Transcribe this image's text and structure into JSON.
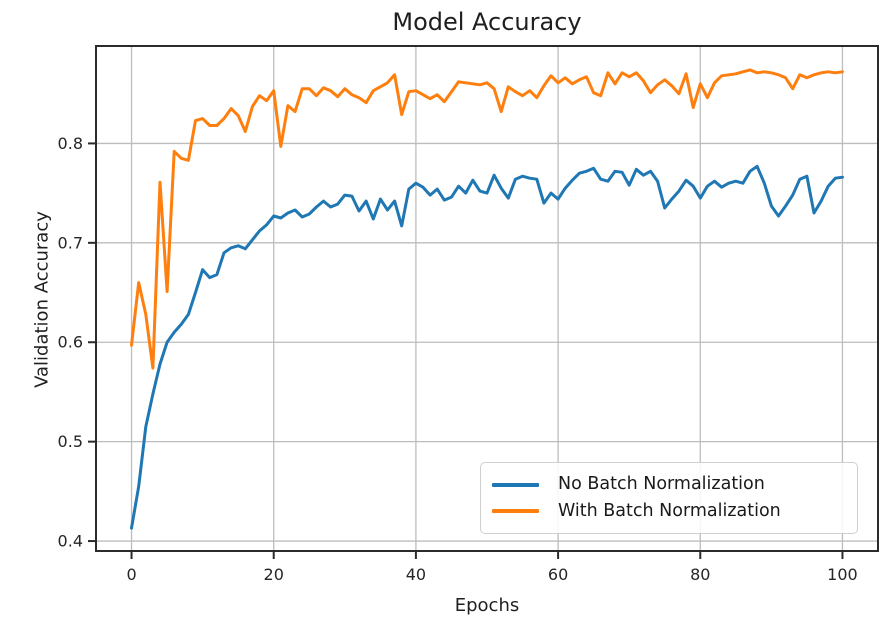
{
  "chart_data": {
    "type": "line",
    "title": "Model Accuracy",
    "xlabel": "Epochs",
    "ylabel": "Validation Accuracy",
    "xlim": [
      -5,
      105
    ],
    "ylim": [
      0.39,
      0.898
    ],
    "xticks": [
      0,
      20,
      40,
      60,
      80,
      100
    ],
    "yticks": [
      0.4,
      0.5,
      0.6,
      0.7,
      0.8
    ],
    "grid": true,
    "legend_position": "lower right",
    "x": [
      0,
      1,
      2,
      3,
      4,
      5,
      6,
      7,
      8,
      9,
      10,
      11,
      12,
      13,
      14,
      15,
      16,
      17,
      18,
      19,
      20,
      21,
      22,
      23,
      24,
      25,
      26,
      27,
      28,
      29,
      30,
      31,
      32,
      33,
      34,
      35,
      36,
      37,
      38,
      39,
      40,
      41,
      42,
      43,
      44,
      45,
      46,
      47,
      48,
      49,
      50,
      51,
      52,
      53,
      54,
      55,
      56,
      57,
      58,
      59,
      60,
      61,
      62,
      63,
      64,
      65,
      66,
      67,
      68,
      69,
      70,
      71,
      72,
      73,
      74,
      75,
      76,
      77,
      78,
      79,
      80,
      81,
      82,
      83,
      84,
      85,
      86,
      87,
      88,
      89,
      90,
      91,
      92,
      93,
      94,
      95,
      96,
      97,
      98,
      99,
      100
    ],
    "series": [
      {
        "name": "No Batch Normalization",
        "color": "#1f77b4",
        "values": [
          0.413,
          0.455,
          0.515,
          0.548,
          0.578,
          0.6,
          0.61,
          0.618,
          0.628,
          0.65,
          0.673,
          0.665,
          0.668,
          0.69,
          0.695,
          0.697,
          0.694,
          0.703,
          0.712,
          0.718,
          0.727,
          0.725,
          0.73,
          0.733,
          0.726,
          0.729,
          0.736,
          0.742,
          0.736,
          0.739,
          0.748,
          0.747,
          0.732,
          0.742,
          0.724,
          0.744,
          0.733,
          0.742,
          0.717,
          0.754,
          0.76,
          0.756,
          0.748,
          0.754,
          0.743,
          0.746,
          0.757,
          0.75,
          0.763,
          0.752,
          0.75,
          0.768,
          0.755,
          0.745,
          0.764,
          0.767,
          0.765,
          0.764,
          0.74,
          0.75,
          0.744,
          0.755,
          0.763,
          0.77,
          0.772,
          0.775,
          0.764,
          0.762,
          0.772,
          0.771,
          0.758,
          0.774,
          0.768,
          0.772,
          0.762,
          0.735,
          0.744,
          0.752,
          0.763,
          0.757,
          0.745,
          0.757,
          0.762,
          0.756,
          0.76,
          0.762,
          0.76,
          0.772,
          0.777,
          0.76,
          0.737,
          0.727,
          0.737,
          0.748,
          0.764,
          0.767,
          0.73,
          0.742,
          0.757,
          0.765,
          0.766
        ]
      },
      {
        "name": "With Batch Normalization",
        "color": "#ff7f0e",
        "values": [
          0.597,
          0.66,
          0.628,
          0.574,
          0.761,
          0.651,
          0.792,
          0.785,
          0.783,
          0.823,
          0.825,
          0.818,
          0.818,
          0.825,
          0.835,
          0.828,
          0.812,
          0.837,
          0.848,
          0.843,
          0.853,
          0.797,
          0.838,
          0.832,
          0.855,
          0.855,
          0.848,
          0.856,
          0.853,
          0.847,
          0.855,
          0.849,
          0.846,
          0.841,
          0.853,
          0.857,
          0.861,
          0.869,
          0.829,
          0.852,
          0.853,
          0.849,
          0.845,
          0.849,
          0.842,
          0.852,
          0.862,
          0.861,
          0.86,
          0.859,
          0.861,
          0.855,
          0.832,
          0.857,
          0.852,
          0.848,
          0.853,
          0.846,
          0.858,
          0.868,
          0.861,
          0.866,
          0.86,
          0.864,
          0.867,
          0.851,
          0.848,
          0.871,
          0.86,
          0.871,
          0.867,
          0.871,
          0.863,
          0.851,
          0.859,
          0.864,
          0.858,
          0.85,
          0.87,
          0.836,
          0.86,
          0.846,
          0.861,
          0.868,
          0.869,
          0.87,
          0.872,
          0.874,
          0.871,
          0.872,
          0.871,
          0.869,
          0.866,
          0.855,
          0.869,
          0.866,
          0.869,
          0.871,
          0.872,
          0.871,
          0.872
        ]
      }
    ],
    "style": {
      "grid_color": "#bdbdbd",
      "spine_color": "#2b2b2b",
      "tick_color": "#2b2b2b",
      "background": "#ffffff"
    }
  }
}
